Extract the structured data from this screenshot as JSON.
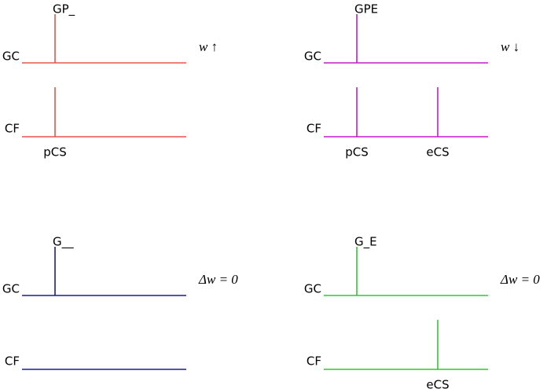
{
  "panels": [
    {
      "title": "GP_",
      "annotation": "w ↑",
      "gc_label": "GC",
      "cf_label": "CF",
      "markers": [
        "pCS"
      ]
    },
    {
      "title": "GPE",
      "annotation": "w ↓",
      "gc_label": "GC",
      "cf_label": "CF",
      "markers": [
        "pCS",
        "eCS"
      ]
    },
    {
      "title": "G__",
      "annotation": "Δw = 0",
      "gc_label": "GC",
      "cf_label": "CF",
      "markers": []
    },
    {
      "title": "G_E",
      "annotation": "Δw = 0",
      "gc_label": "GC",
      "cf_label": "CF",
      "markers": [
        "eCS"
      ]
    }
  ]
}
